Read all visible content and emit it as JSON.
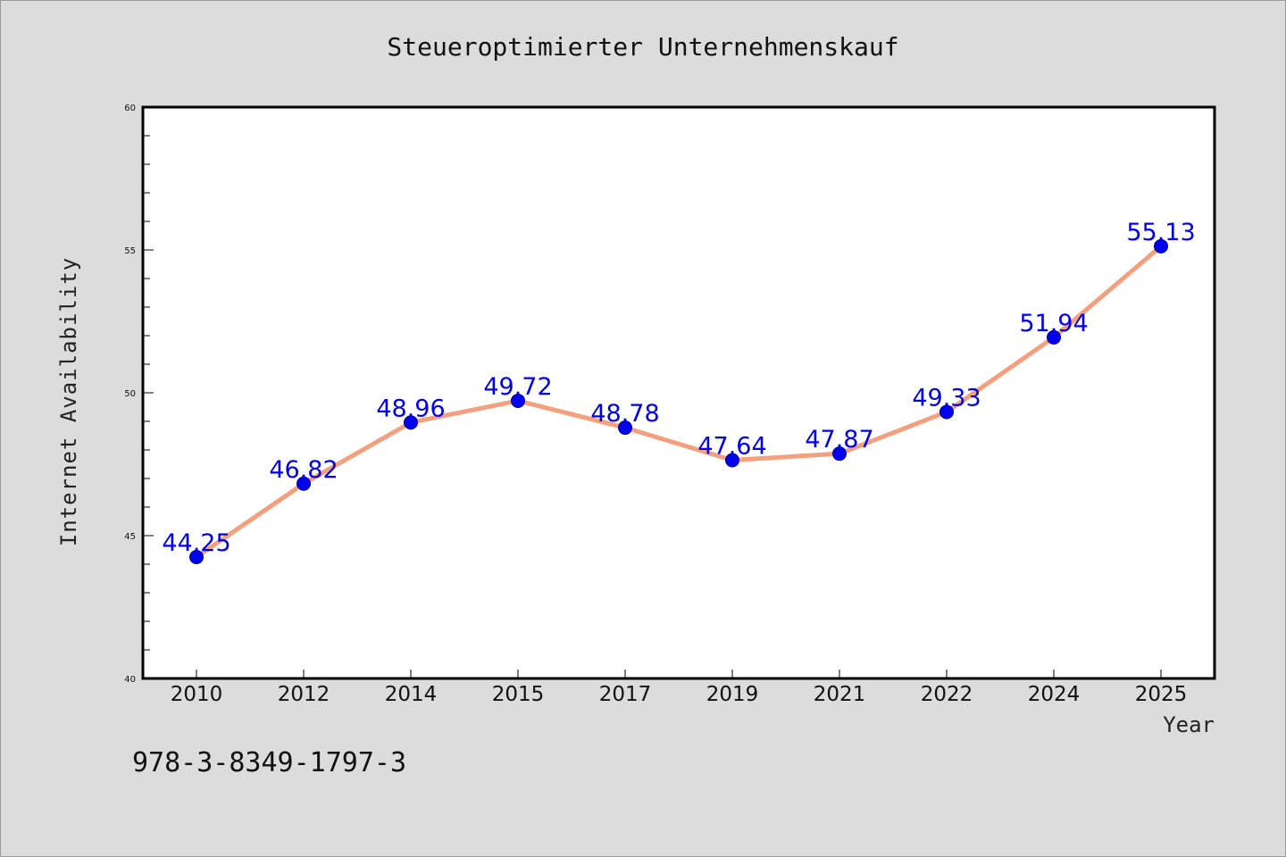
{
  "chart_data": {
    "type": "line",
    "title": "Steueroptimierter Unternehmenskauf",
    "xlabel": "Year",
    "ylabel": "Internet Availability",
    "categories": [
      "2010",
      "2012",
      "2014",
      "2015",
      "2017",
      "2019",
      "2021",
      "2022",
      "2024",
      "2025"
    ],
    "series": [
      {
        "values": [
          44.25,
          46.82,
          48.96,
          49.72,
          48.78,
          47.64,
          47.87,
          49.33,
          51.94,
          55.13
        ],
        "labels": [
          "44.25",
          "46.82",
          "48.96",
          "49.72",
          "48.78",
          "47.64",
          "47.87",
          "49.33",
          "51.94",
          "55.13"
        ]
      }
    ],
    "ylim": [
      40,
      60
    ],
    "yticks": [
      "40",
      "45",
      "50",
      "55",
      "60"
    ],
    "grid": false,
    "colors": {
      "line": "#f4a07e",
      "marker": "#0000ee",
      "data_label": "#0000ee",
      "background": "#dcdcdc",
      "plot_background": "#ffffff"
    }
  },
  "footer": {
    "isbn": "978-3-8349-1797-3"
  }
}
